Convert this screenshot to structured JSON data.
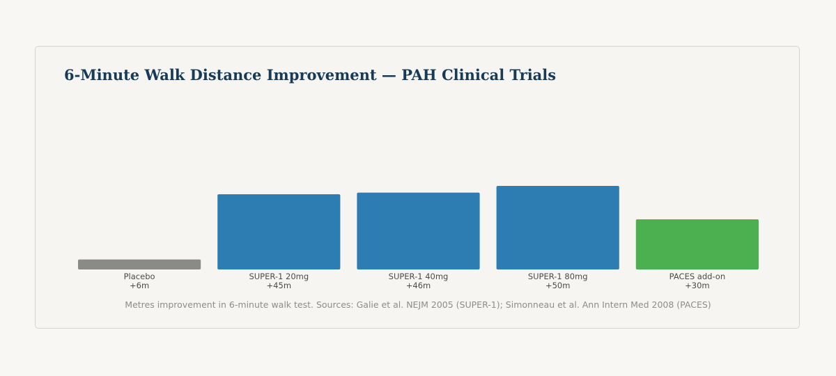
{
  "chart_data": {
    "type": "bar",
    "title": "6-Minute Walk Distance Improvement — PAH Clinical Trials",
    "categories": [
      "Placebo",
      "SUPER-1 20mg",
      "SUPER-1 40mg",
      "SUPER-1 80mg",
      "PACES add-on"
    ],
    "values": [
      6,
      45,
      46,
      50,
      30
    ],
    "value_labels": [
      "+6m",
      "+45m",
      "+46m",
      "+50m",
      "+30m"
    ],
    "colors": [
      "#8a8a87",
      "#2e7db2",
      "#2e7db2",
      "#2e7db2",
      "#4caf50"
    ],
    "ylim": [
      0,
      100
    ],
    "grid": false,
    "legend": "none",
    "source_note": "Metres improvement in 6-minute walk test. Sources: Galie et al. NEJM 2005 (SUPER-1); Simonneau et al. Ann Intern Med 2008 (PACES)"
  }
}
